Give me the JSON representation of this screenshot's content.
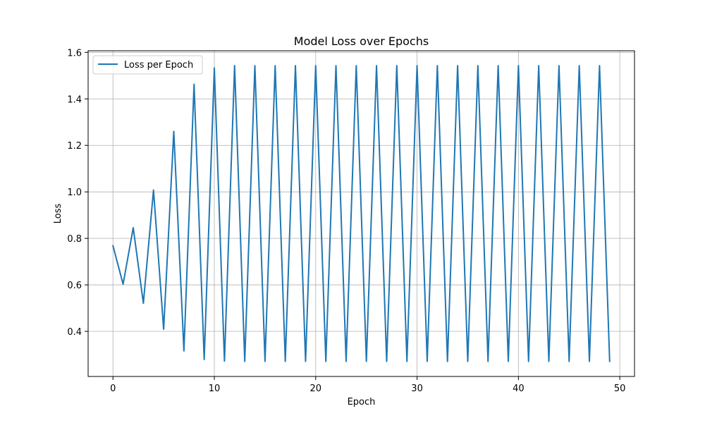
{
  "chart_data": {
    "type": "line",
    "title": "Model Loss over Epochs",
    "xlabel": "Epoch",
    "ylabel": "Loss",
    "xlim": [
      -2.45,
      51.45
    ],
    "ylim": [
      0.206,
      1.607
    ],
    "xticks": [
      0,
      10,
      20,
      30,
      40,
      50
    ],
    "yticks": [
      0.4,
      0.6,
      0.8,
      1.0,
      1.2,
      1.4,
      1.6
    ],
    "xtick_labels": [
      "0",
      "10",
      "20",
      "30",
      "40",
      "50"
    ],
    "ytick_labels": [
      "0.4",
      "0.6",
      "0.8",
      "1.0",
      "1.2",
      "1.4",
      "1.6"
    ],
    "grid": true,
    "legend_position": "upper-left",
    "series": [
      {
        "name": "Loss per Epoch",
        "color": "#1f77b4",
        "x": [
          0,
          1,
          2,
          3,
          4,
          5,
          6,
          7,
          8,
          9,
          10,
          11,
          12,
          13,
          14,
          15,
          16,
          17,
          18,
          19,
          20,
          21,
          22,
          23,
          24,
          25,
          26,
          27,
          28,
          29,
          30,
          31,
          32,
          33,
          34,
          35,
          36,
          37,
          38,
          39,
          40,
          41,
          42,
          43,
          44,
          45,
          46,
          47,
          48,
          49
        ],
        "values": [
          0.768,
          0.603,
          0.846,
          0.521,
          1.008,
          0.409,
          1.26,
          0.316,
          1.463,
          0.279,
          1.533,
          0.272,
          1.543,
          0.271,
          1.543,
          0.271,
          1.543,
          0.271,
          1.543,
          0.271,
          1.543,
          0.271,
          1.543,
          0.271,
          1.543,
          0.271,
          1.543,
          0.271,
          1.543,
          0.271,
          1.543,
          0.271,
          1.543,
          0.271,
          1.543,
          0.271,
          1.543,
          0.271,
          1.543,
          0.271,
          1.543,
          0.271,
          1.543,
          0.271,
          1.543,
          0.271,
          1.543,
          0.271,
          1.543,
          0.271
        ]
      }
    ]
  }
}
